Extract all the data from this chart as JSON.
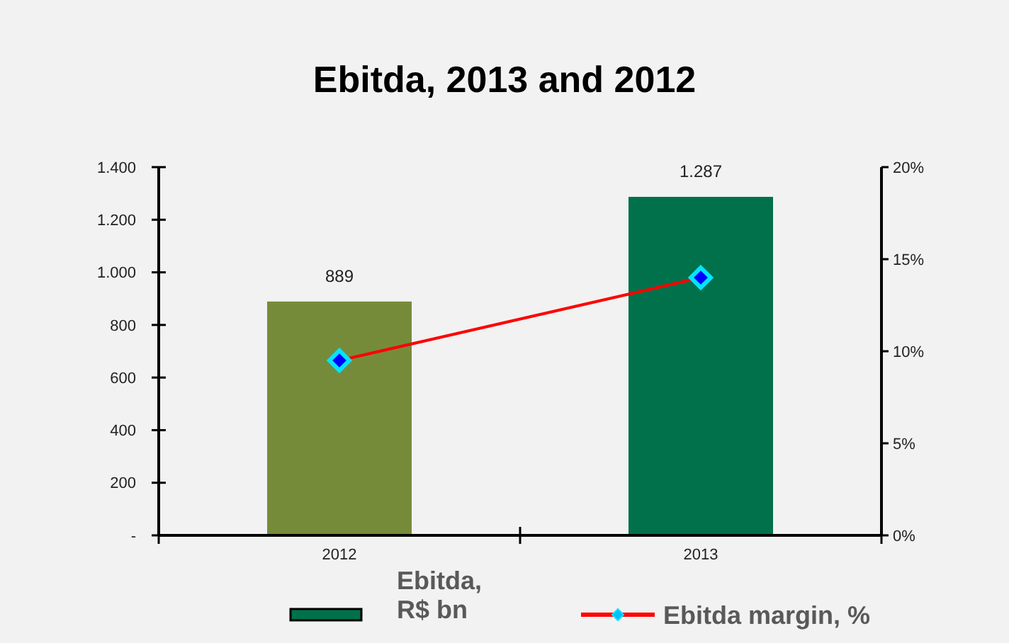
{
  "chart_data": {
    "type": "bar",
    "title": "Ebitda, 2013 and 2012",
    "categories": [
      "2012",
      "2013"
    ],
    "series": [
      {
        "name": "Ebitda, R$ bn",
        "color": "#00714b",
        "colors": [
          "#768b3a",
          "#00714b"
        ],
        "values": [
          889,
          1287
        ],
        "value_labels": [
          "889",
          "1.287"
        ]
      },
      {
        "name": "Ebitda margin, %",
        "type": "line",
        "axis": "y2",
        "color": "#ff0000",
        "values": [
          9.5,
          14.0
        ],
        "marker": "diamond"
      }
    ],
    "ylim": [
      0,
      1400
    ],
    "yticks": [
      {
        "value": 0,
        "label": "-"
      },
      {
        "value": 200,
        "label": "200"
      },
      {
        "value": 400,
        "label": "400"
      },
      {
        "value": 600,
        "label": "600"
      },
      {
        "value": 800,
        "label": "800"
      },
      {
        "value": 1000,
        "label": "1.000"
      },
      {
        "value": 1200,
        "label": "1.200"
      },
      {
        "value": 1400,
        "label": "1.400"
      }
    ],
    "y2lim": [
      0,
      20
    ],
    "y2ticks": [
      {
        "value": 0,
        "label": "0%"
      },
      {
        "value": 5,
        "label": "5%"
      },
      {
        "value": 10,
        "label": "10%"
      },
      {
        "value": 15,
        "label": "15%"
      },
      {
        "value": 20,
        "label": "20%"
      }
    ],
    "legend": "bottom",
    "grid": false
  }
}
